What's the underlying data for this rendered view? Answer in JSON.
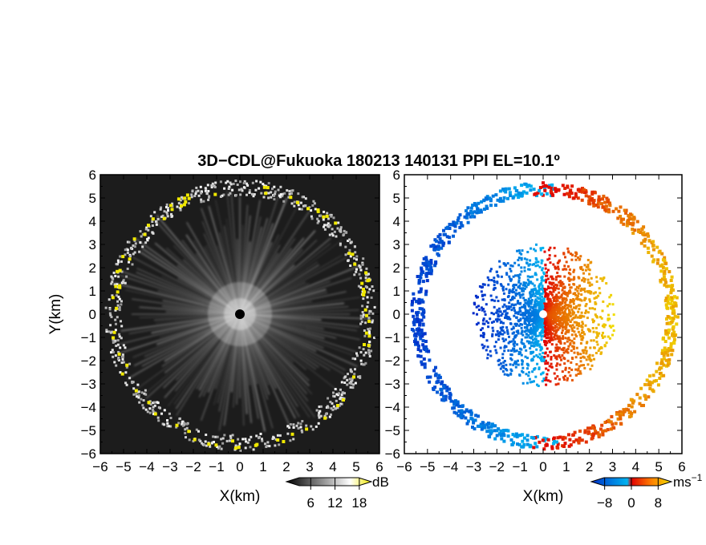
{
  "chart_data": [
    {
      "type": "heatmap",
      "title": "3D−CDL@Fukuoka 180213 140131 PPI EL=10.1º",
      "panel": "reflectivity",
      "xlabel": "X(km)",
      "ylabel": "Y(km)",
      "xlim": [
        -6,
        6
      ],
      "ylim": [
        -6,
        6
      ],
      "xticks": [
        "−6",
        "−5",
        "−4",
        "−3",
        "−2",
        "−1",
        "0",
        "1",
        "2",
        "3",
        "4",
        "5",
        "6"
      ],
      "yticks": [
        "−6",
        "−5",
        "−4",
        "−3",
        "−2",
        "−1",
        "0",
        "1",
        "2",
        "3",
        "4",
        "5",
        "6"
      ],
      "colorbar": {
        "unit": "dB",
        "ticks": [
          "6",
          "12",
          "18"
        ],
        "tick_values": [
          6,
          12,
          18
        ],
        "range": [
          0,
          21
        ],
        "colors": [
          "#000000",
          "#ffffff",
          "#f0e800"
        ]
      },
      "max_range_km": 5.6,
      "radar_position": [
        0,
        0
      ]
    },
    {
      "type": "heatmap",
      "panel": "doppler-velocity",
      "xlabel": "X(km)",
      "ylabel": "",
      "xlim": [
        -6,
        6
      ],
      "ylim": [
        -6,
        6
      ],
      "xticks": [
        "−6",
        "−5",
        "−4",
        "−3",
        "−2",
        "−1",
        "0",
        "1",
        "2",
        "3",
        "4",
        "5",
        "6"
      ],
      "colorbar": {
        "unit": "ms",
        "unit_exponent": "−1",
        "ticks": [
          "−8",
          "0",
          "8"
        ],
        "tick_values": [
          -8,
          0,
          8
        ],
        "range": [
          -12,
          12
        ],
        "colors": [
          "#0030c8",
          "#00b4f0",
          "#e00000",
          "#ff8000",
          "#f0e000"
        ]
      },
      "max_range_km": 5.6,
      "radar_position": [
        0,
        0
      ]
    }
  ]
}
